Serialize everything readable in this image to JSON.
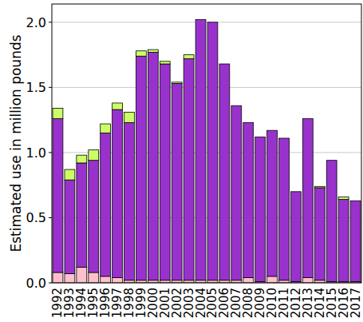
{
  "chart_data": {
    "type": "bar",
    "stacked": true,
    "grid": true,
    "y_label": "Estimated use in million pounds",
    "categories": [
      "1992",
      "1993",
      "1994",
      "1995",
      "1996",
      "1997",
      "1998",
      "1999",
      "2000",
      "2001",
      "2002",
      "2003",
      "2004",
      "2005",
      "2006",
      "2007",
      "2008",
      "2009",
      "2010",
      "2011",
      "2012",
      "2013",
      "2014",
      "2015",
      "2016",
      "2017"
    ],
    "series": [
      {
        "color": "#ffc0cb",
        "values": [
          0.08,
          0.07,
          0.12,
          0.08,
          0.05,
          0.04,
          0.02,
          0.02,
          0.02,
          0.02,
          0.02,
          0.02,
          0.02,
          0.02,
          0.02,
          0.02,
          0.04,
          0.01,
          0.05,
          0.02,
          0.01,
          0.04,
          0.02,
          0.01,
          0.01,
          0.01
        ]
      },
      {
        "color": "#9932cc",
        "values": [
          1.18,
          0.72,
          0.8,
          0.86,
          1.1,
          1.29,
          1.21,
          1.72,
          1.75,
          1.66,
          1.51,
          1.7,
          2.0,
          1.98,
          1.66,
          1.34,
          1.19,
          1.11,
          1.12,
          1.09,
          0.69,
          1.22,
          0.71,
          0.93,
          0.63,
          0.62
        ]
      },
      {
        "color": "#ccff66",
        "values": [
          0.08,
          0.08,
          0.06,
          0.08,
          0.07,
          0.05,
          0.08,
          0.04,
          0.02,
          0.02,
          0.01,
          0.03,
          0,
          0,
          0,
          0,
          0,
          0,
          0,
          0,
          0,
          0,
          0.01,
          0,
          0.02,
          0
        ]
      }
    ],
    "ylim": [
      0,
      2.14
    ],
    "yticks": [
      {
        "value": 0,
        "label": "0.0"
      },
      {
        "value": 0.5,
        "label": "0.5"
      },
      {
        "value": 1,
        "label": "1.0"
      },
      {
        "value": 1.5,
        "label": "1.5"
      },
      {
        "value": 2,
        "label": "2.0"
      }
    ]
  }
}
